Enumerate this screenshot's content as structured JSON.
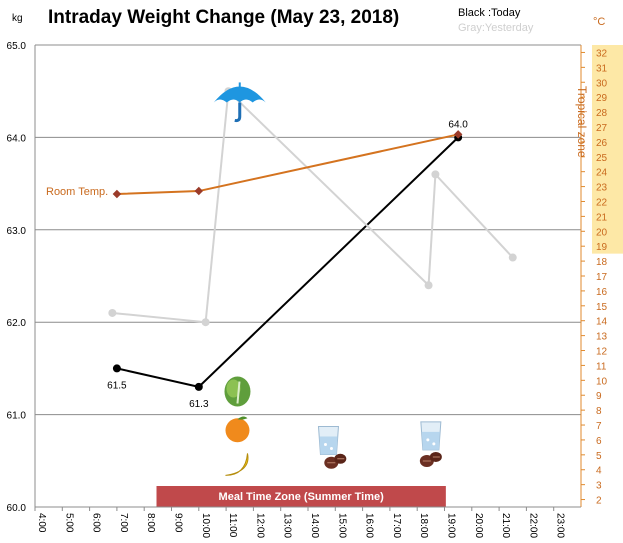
{
  "chart_data": {
    "type": "line",
    "title": "Intraday Weight Change (May 23, 2018)",
    "y_unit": "kg",
    "y2_unit": "°C",
    "ylim": [
      60.0,
      65.0
    ],
    "y2lim": [
      2,
      32
    ],
    "y_ticks": [
      "60.0",
      "61.0",
      "62.0",
      "63.0",
      "64.0",
      "65.0"
    ],
    "y2_ticks": [
      "2",
      "3",
      "4",
      "5",
      "6",
      "7",
      "8",
      "9",
      "10",
      "11",
      "12",
      "13",
      "14",
      "15",
      "16",
      "17",
      "18",
      "19",
      "20",
      "21",
      "22",
      "23",
      "24",
      "25",
      "26",
      "27",
      "28",
      "29",
      "30",
      "31",
      "32"
    ],
    "x_ticks": [
      "4:00",
      "5:00",
      "6:00",
      "7:00",
      "8:00",
      "9:00",
      "10:00",
      "11:00",
      "12:00",
      "13:00",
      "14:00",
      "15:00",
      "16:00",
      "17:00",
      "18:00",
      "19:00",
      "20:00",
      "21:00",
      "22:00",
      "23:00"
    ],
    "legend": {
      "today": "Black :Today",
      "yesterday": "Gray:Yesterday"
    },
    "series": [
      {
        "name": "Today",
        "color": "#000000",
        "axis": "left",
        "x": [
          "7:00",
          "10:00",
          "19:30"
        ],
        "values": [
          61.5,
          61.3,
          64.0
        ],
        "labels": [
          "61.5",
          "61.3",
          "64.0"
        ]
      },
      {
        "name": "Yesterday",
        "color": "#d3d3d3",
        "axis": "left",
        "x": [
          "6:50",
          "10:15",
          "11:05",
          "18:25",
          "18:40",
          "21:30"
        ],
        "values": [
          62.1,
          62.0,
          64.5,
          62.4,
          63.6,
          62.7
        ]
      },
      {
        "name": "Room Temp.",
        "color": "#d4731f",
        "axis": "right",
        "x": [
          "7:00",
          "10:00",
          "19:30"
        ],
        "values": [
          22.5,
          22.7,
          26.5
        ]
      }
    ],
    "tropical_zone": {
      "label": "Tropical zone",
      "from": 19,
      "to": 32,
      "color": "#fde8a6"
    },
    "meal_zone": {
      "label": "Meal Time Zone  (Summer Time)",
      "from": "9:00",
      "to": "18:30",
      "color": "#c0494b"
    },
    "room_temp_label": "Room Temp.",
    "icons": [
      {
        "name": "umbrella-icon",
        "x": "11:30",
        "y": 64.4
      },
      {
        "name": "lettuce-icon",
        "x": "11:25",
        "y": 61.25
      },
      {
        "name": "orange-icon",
        "x": "11:25",
        "y": 60.83
      },
      {
        "name": "banana-icon",
        "x": "11:25",
        "y": 60.45
      },
      {
        "name": "water-glass-icon",
        "x": "14:45",
        "y": 60.72
      },
      {
        "name": "nuts-icon",
        "x": "15:00",
        "y": 60.5
      },
      {
        "name": "water-glass-icon",
        "x": "18:30",
        "y": 60.77
      },
      {
        "name": "nuts-icon",
        "x": "18:30",
        "y": 60.52
      }
    ]
  }
}
